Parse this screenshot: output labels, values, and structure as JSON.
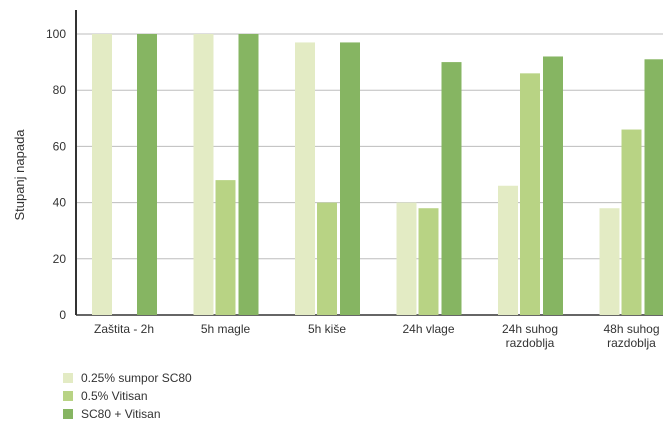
{
  "chart_data": {
    "type": "bar",
    "title": "",
    "xlabel": "",
    "ylabel": "Stupanj napada",
    "ylim": [
      0,
      100
    ],
    "yticks": [
      0,
      20,
      40,
      60,
      80,
      100
    ],
    "grid": true,
    "legend_position": "bottom-left",
    "categories": [
      [
        "Zaštita - 2h"
      ],
      [
        "5h magle"
      ],
      [
        "5h kiše"
      ],
      [
        "24h vlage"
      ],
      [
        "24h suhog",
        "razdoblja"
      ],
      [
        "48h suhog",
        "razdoblja"
      ]
    ],
    "series": [
      {
        "name": "0.25% sumpor SC80",
        "color": "#e3ebc4",
        "values": [
          100,
          100,
          97,
          40,
          46,
          38
        ]
      },
      {
        "name": "0.5%  Vitisan",
        "color": "#b8d384",
        "values": [
          0,
          48,
          40,
          38,
          86,
          66
        ]
      },
      {
        "name": "SC80 + Vitisan",
        "color": "#86b562",
        "values": [
          100,
          100,
          97,
          90,
          92,
          91
        ]
      }
    ]
  }
}
